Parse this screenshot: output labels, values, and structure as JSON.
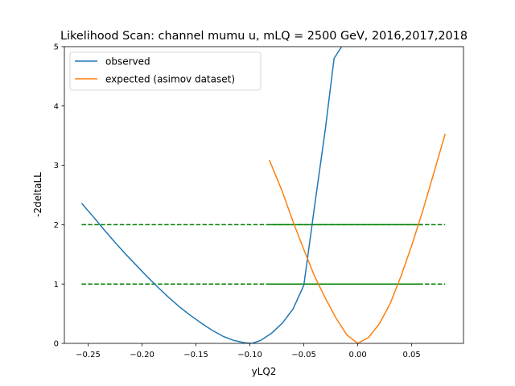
{
  "chart_data": {
    "type": "line",
    "title": "Likelihood Scan: channel mumu u, mLQ = 2500 GeV, 2016,2017,2018",
    "xlabel": "yLQ2",
    "ylabel": "-2deltaLL",
    "xlim": [
      -0.272,
      0.098
    ],
    "ylim": [
      0,
      5
    ],
    "x_ticks": [
      -0.25,
      -0.2,
      -0.15,
      -0.1,
      -0.05,
      0.0,
      0.05
    ],
    "x_tick_labels": [
      "−0.25",
      "−0.20",
      "−0.15",
      "−0.10",
      "−0.05",
      "0.00",
      "0.05"
    ],
    "y_ticks": [
      0,
      1,
      2,
      3,
      4,
      5
    ],
    "y_tick_labels": [
      "0",
      "1",
      "2",
      "3",
      "4",
      "5"
    ],
    "grid": false,
    "legend_position": "top-left",
    "series": [
      {
        "name": "observed",
        "color": "#1f77b4",
        "x": [
          -0.256,
          -0.245,
          -0.235,
          -0.225,
          -0.215,
          -0.205,
          -0.195,
          -0.185,
          -0.175,
          -0.165,
          -0.155,
          -0.145,
          -0.135,
          -0.125,
          -0.115,
          -0.105,
          -0.098,
          -0.09,
          -0.08,
          -0.07,
          -0.06,
          -0.05,
          -0.04,
          -0.03,
          -0.022,
          -0.015
        ],
        "y": [
          2.36,
          2.13,
          1.91,
          1.7,
          1.5,
          1.31,
          1.12,
          0.94,
          0.77,
          0.61,
          0.47,
          0.34,
          0.22,
          0.12,
          0.05,
          0.01,
          0.0,
          0.05,
          0.17,
          0.34,
          0.58,
          0.98,
          2.32,
          3.62,
          4.8,
          5.0
        ]
      },
      {
        "name": "expected (asimov dataset)",
        "color": "#ff7f0e",
        "x": [
          -0.082,
          -0.07,
          -0.06,
          -0.05,
          -0.04,
          -0.03,
          -0.02,
          -0.01,
          0.0,
          0.01,
          0.02,
          0.03,
          0.04,
          0.05,
          0.06,
          0.07,
          0.081
        ],
        "y": [
          3.09,
          2.56,
          2.05,
          1.58,
          1.13,
          0.76,
          0.42,
          0.14,
          0.0,
          0.1,
          0.33,
          0.67,
          1.13,
          1.65,
          2.22,
          2.84,
          3.53
        ]
      }
    ],
    "reference_lines": [
      {
        "y": 2,
        "style": "dashed",
        "color": "#008000",
        "x": [
          -0.256,
          0.081
        ]
      },
      {
        "y": 1,
        "style": "dashed",
        "color": "#008000",
        "x": [
          -0.256,
          0.081
        ]
      },
      {
        "y": 2,
        "style": "solid",
        "color": "#008000",
        "x": [
          -0.082,
          0.06
        ]
      },
      {
        "y": 1,
        "style": "solid",
        "color": "#008000",
        "x": [
          -0.082,
          0.06
        ]
      }
    ]
  }
}
